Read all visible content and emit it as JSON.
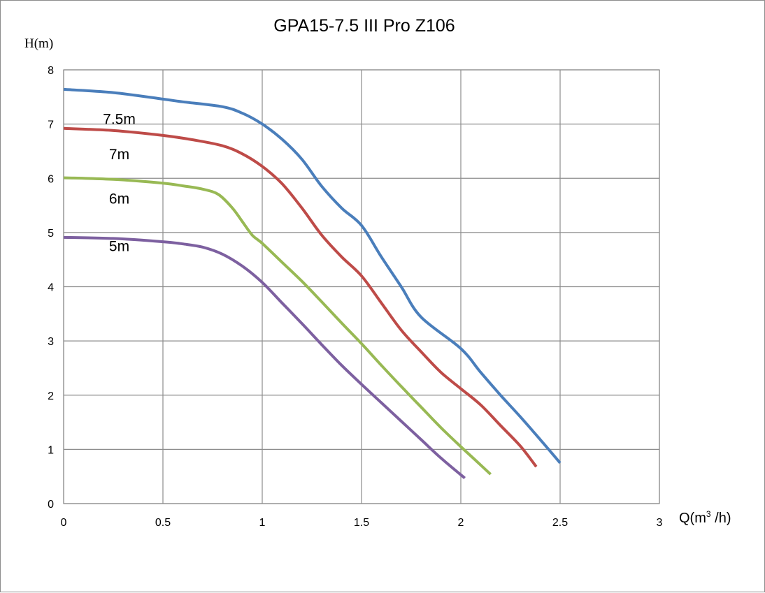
{
  "chart_data": {
    "type": "line",
    "title": "GPA15-7.5 III Pro Z106",
    "ylabel": "H(m)",
    "xlabel_main": "Q(m",
    "xlabel_sup": "3",
    "xlabel_tail": " /h)",
    "xlim": [
      0,
      3
    ],
    "ylim": [
      0,
      8
    ],
    "x_ticks": [
      "0",
      "0.5",
      "1",
      "1.5",
      "2",
      "2.5",
      "3"
    ],
    "y_ticks": [
      "0",
      "1",
      "2",
      "3",
      "4",
      "5",
      "6",
      "7",
      "8"
    ],
    "grid": true,
    "legend": "none",
    "series": [
      {
        "label": "7.5m",
        "color": "#4a7ebb",
        "points": [
          [
            0,
            7.64
          ],
          [
            0.25,
            7.58
          ],
          [
            0.5,
            7.46
          ],
          [
            0.6,
            7.41
          ],
          [
            0.8,
            7.32
          ],
          [
            0.9,
            7.2
          ],
          [
            1.0,
            7.0
          ],
          [
            1.1,
            6.72
          ],
          [
            1.2,
            6.35
          ],
          [
            1.3,
            5.85
          ],
          [
            1.4,
            5.45
          ],
          [
            1.5,
            5.13
          ],
          [
            1.6,
            4.55
          ],
          [
            1.7,
            4.0
          ],
          [
            1.8,
            3.44
          ],
          [
            2.0,
            2.86
          ],
          [
            2.1,
            2.42
          ],
          [
            2.2,
            2.0
          ],
          [
            2.3,
            1.6
          ],
          [
            2.4,
            1.18
          ],
          [
            2.5,
            0.75
          ]
        ]
      },
      {
        "label": "7m",
        "color": "#be4b48",
        "points": [
          [
            0,
            6.92
          ],
          [
            0.25,
            6.88
          ],
          [
            0.5,
            6.79
          ],
          [
            0.65,
            6.71
          ],
          [
            0.8,
            6.6
          ],
          [
            0.9,
            6.45
          ],
          [
            1.0,
            6.22
          ],
          [
            1.1,
            5.9
          ],
          [
            1.2,
            5.45
          ],
          [
            1.3,
            4.95
          ],
          [
            1.4,
            4.55
          ],
          [
            1.5,
            4.2
          ],
          [
            1.6,
            3.7
          ],
          [
            1.7,
            3.2
          ],
          [
            1.8,
            2.8
          ],
          [
            1.9,
            2.42
          ],
          [
            2.0,
            2.12
          ],
          [
            2.1,
            1.82
          ],
          [
            2.2,
            1.44
          ],
          [
            2.3,
            1.06
          ],
          [
            2.38,
            0.68
          ]
        ]
      },
      {
        "label": "6m",
        "color": "#98b954",
        "points": [
          [
            0,
            6.01
          ],
          [
            0.25,
            5.98
          ],
          [
            0.5,
            5.91
          ],
          [
            0.6,
            5.86
          ],
          [
            0.7,
            5.8
          ],
          [
            0.78,
            5.7
          ],
          [
            0.85,
            5.45
          ],
          [
            0.9,
            5.2
          ],
          [
            0.95,
            4.95
          ],
          [
            1.0,
            4.8
          ],
          [
            1.1,
            4.45
          ],
          [
            1.2,
            4.1
          ],
          [
            1.3,
            3.72
          ],
          [
            1.4,
            3.33
          ],
          [
            1.5,
            2.95
          ],
          [
            1.6,
            2.55
          ],
          [
            1.7,
            2.16
          ],
          [
            1.8,
            1.78
          ],
          [
            1.9,
            1.4
          ],
          [
            2.0,
            1.05
          ],
          [
            2.08,
            0.78
          ],
          [
            2.15,
            0.54
          ]
        ]
      },
      {
        "label": "5m",
        "color": "#7d60a0",
        "points": [
          [
            0,
            4.91
          ],
          [
            0.25,
            4.89
          ],
          [
            0.5,
            4.83
          ],
          [
            0.6,
            4.79
          ],
          [
            0.7,
            4.73
          ],
          [
            0.8,
            4.6
          ],
          [
            0.9,
            4.38
          ],
          [
            1.0,
            4.08
          ],
          [
            1.1,
            3.7
          ],
          [
            1.2,
            3.32
          ],
          [
            1.3,
            2.93
          ],
          [
            1.4,
            2.55
          ],
          [
            1.5,
            2.2
          ],
          [
            1.6,
            1.86
          ],
          [
            1.7,
            1.52
          ],
          [
            1.8,
            1.18
          ],
          [
            1.9,
            0.84
          ],
          [
            2.02,
            0.47
          ]
        ]
      }
    ],
    "series_label_positions": [
      {
        "label": "7.5m",
        "x": 0.28,
        "y": 7.0
      },
      {
        "label": "7m",
        "x": 0.28,
        "y": 6.35
      },
      {
        "label": "6m",
        "x": 0.28,
        "y": 5.53
      },
      {
        "label": "5m",
        "x": 0.28,
        "y": 4.66
      }
    ]
  }
}
